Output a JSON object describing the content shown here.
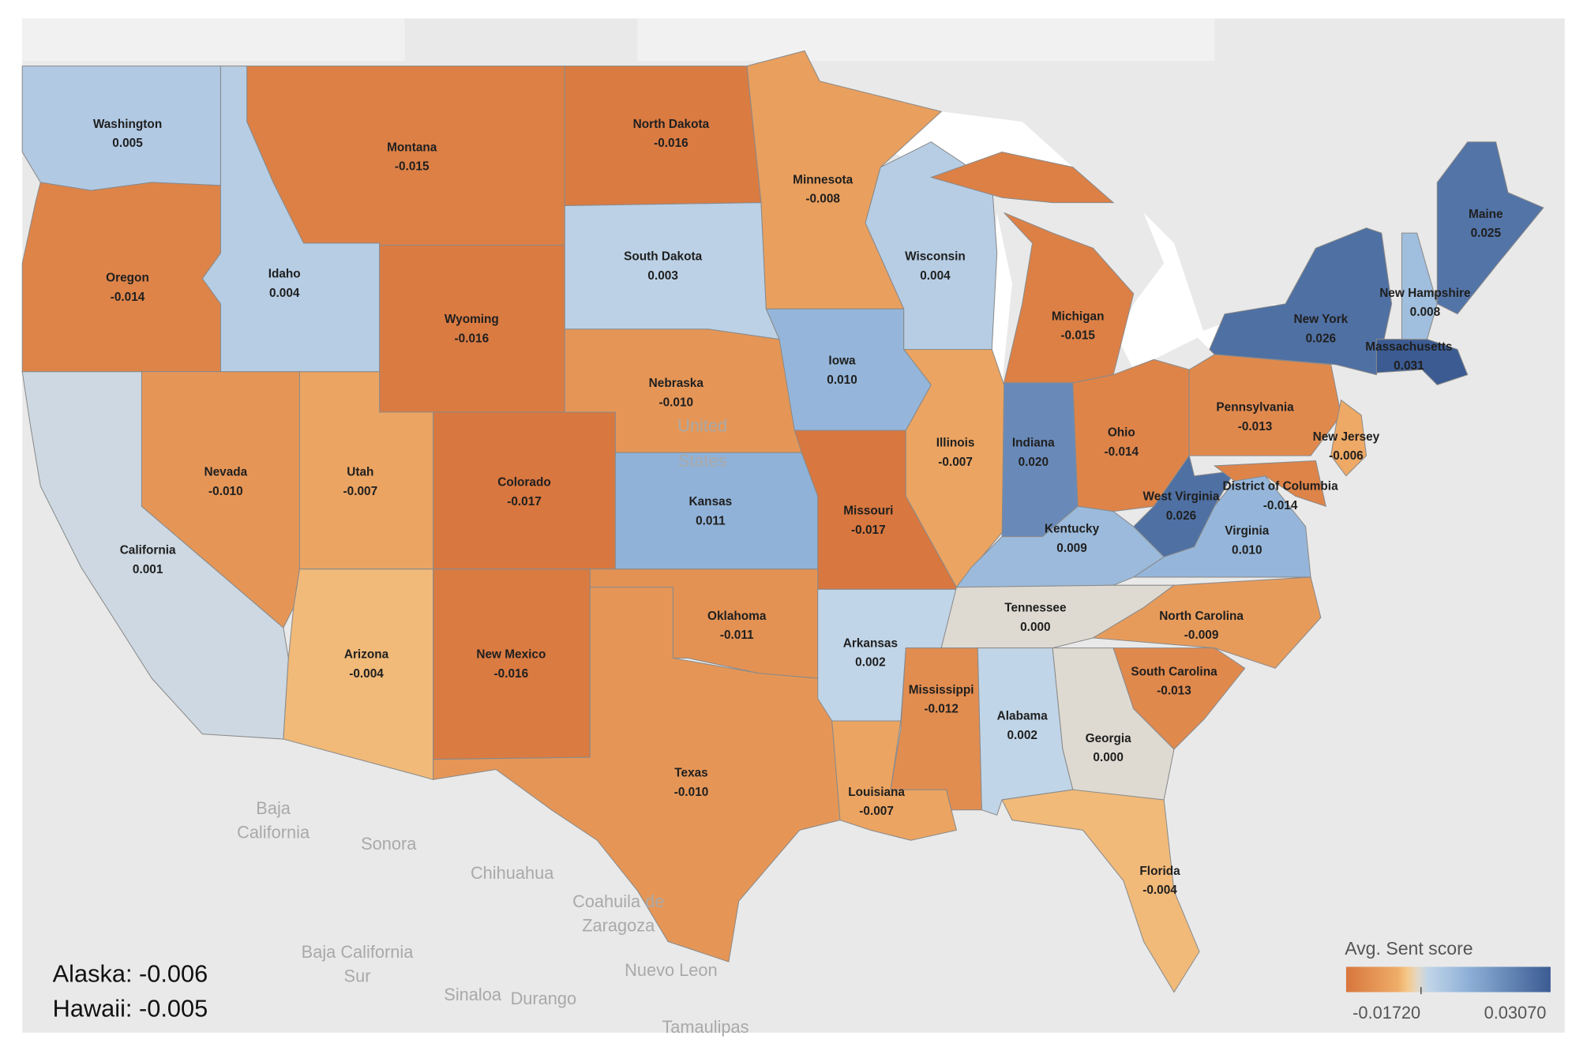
{
  "map": {
    "legend": {
      "title": "Avg. Sent score",
      "min": {
        "value": -0.0172,
        "label": "-0.01720"
      },
      "max": {
        "value": 0.0307,
        "label": "0.03070"
      }
    },
    "states": [
      {
        "name": "Washington",
        "value": 0.005,
        "value_label": "0.005"
      },
      {
        "name": "Oregon",
        "value": -0.014,
        "value_label": "-0.014"
      },
      {
        "name": "California",
        "value": 0.001,
        "value_label": "0.001"
      },
      {
        "name": "Idaho",
        "value": 0.004,
        "value_label": "0.004"
      },
      {
        "name": "Nevada",
        "value": -0.01,
        "value_label": "-0.010"
      },
      {
        "name": "Montana",
        "value": -0.015,
        "value_label": "-0.015"
      },
      {
        "name": "Wyoming",
        "value": -0.016,
        "value_label": "-0.016"
      },
      {
        "name": "Utah",
        "value": -0.007,
        "value_label": "-0.007"
      },
      {
        "name": "Arizona",
        "value": -0.004,
        "value_label": "-0.004"
      },
      {
        "name": "Colorado",
        "value": -0.017,
        "value_label": "-0.017"
      },
      {
        "name": "New Mexico",
        "value": -0.016,
        "value_label": "-0.016"
      },
      {
        "name": "North Dakota",
        "value": -0.016,
        "value_label": "-0.016"
      },
      {
        "name": "South Dakota",
        "value": 0.003,
        "value_label": "0.003"
      },
      {
        "name": "Nebraska",
        "value": -0.01,
        "value_label": "-0.010"
      },
      {
        "name": "Kansas",
        "value": 0.011,
        "value_label": "0.011"
      },
      {
        "name": "Oklahoma",
        "value": -0.011,
        "value_label": "-0.011"
      },
      {
        "name": "Texas",
        "value": -0.01,
        "value_label": "-0.010"
      },
      {
        "name": "Minnesota",
        "value": -0.008,
        "value_label": "-0.008"
      },
      {
        "name": "Iowa",
        "value": 0.01,
        "value_label": "0.010"
      },
      {
        "name": "Missouri",
        "value": -0.017,
        "value_label": "-0.017"
      },
      {
        "name": "Arkansas",
        "value": 0.002,
        "value_label": "0.002"
      },
      {
        "name": "Louisiana",
        "value": -0.007,
        "value_label": "-0.007"
      },
      {
        "name": "Wisconsin",
        "value": 0.004,
        "value_label": "0.004"
      },
      {
        "name": "Illinois",
        "value": -0.007,
        "value_label": "-0.007"
      },
      {
        "name": "Michigan",
        "value": -0.015,
        "value_label": "-0.015"
      },
      {
        "name": "Indiana",
        "value": 0.02,
        "value_label": "0.020"
      },
      {
        "name": "Ohio",
        "value": -0.014,
        "value_label": "-0.014"
      },
      {
        "name": "Kentucky",
        "value": 0.009,
        "value_label": "0.009"
      },
      {
        "name": "Tennessee",
        "value": 0.0,
        "value_label": "0.000"
      },
      {
        "name": "Mississippi",
        "value": -0.012,
        "value_label": "-0.012"
      },
      {
        "name": "Alabama",
        "value": 0.002,
        "value_label": "0.002"
      },
      {
        "name": "Georgia",
        "value": 0.0,
        "value_label": "0.000"
      },
      {
        "name": "Florida",
        "value": -0.004,
        "value_label": "-0.004"
      },
      {
        "name": "South Carolina",
        "value": -0.013,
        "value_label": "-0.013"
      },
      {
        "name": "North Carolina",
        "value": -0.009,
        "value_label": "-0.009"
      },
      {
        "name": "Virginia",
        "value": 0.01,
        "value_label": "0.010"
      },
      {
        "name": "West Virginia",
        "value": 0.026,
        "value_label": "0.026"
      },
      {
        "name": "District of Columbia",
        "value": -0.014,
        "value_label": "-0.014"
      },
      {
        "name": "Pennsylvania",
        "value": -0.013,
        "value_label": "-0.013"
      },
      {
        "name": "New Jersey",
        "value": -0.006,
        "value_label": "-0.006"
      },
      {
        "name": "New York",
        "value": 0.026,
        "value_label": "0.026"
      },
      {
        "name": "Massachusetts",
        "value": 0.031,
        "value_label": "0.031"
      },
      {
        "name": "New Hampshire",
        "value": 0.008,
        "value_label": "0.008"
      },
      {
        "name": "Maine",
        "value": 0.025,
        "value_label": "0.025"
      }
    ],
    "footnotes": [
      "Alaska: -0.006",
      "Hawaii: -0.005"
    ],
    "background_labels": [
      "United",
      "States",
      "Baja",
      "California",
      "Sonora",
      "Chihuahua",
      "Coahuila de",
      "Zaragoza",
      "Baja California",
      "Sur",
      "Sinaloa",
      "Durango",
      "Nuevo Leon",
      "Tamaulipas"
    ]
  }
}
